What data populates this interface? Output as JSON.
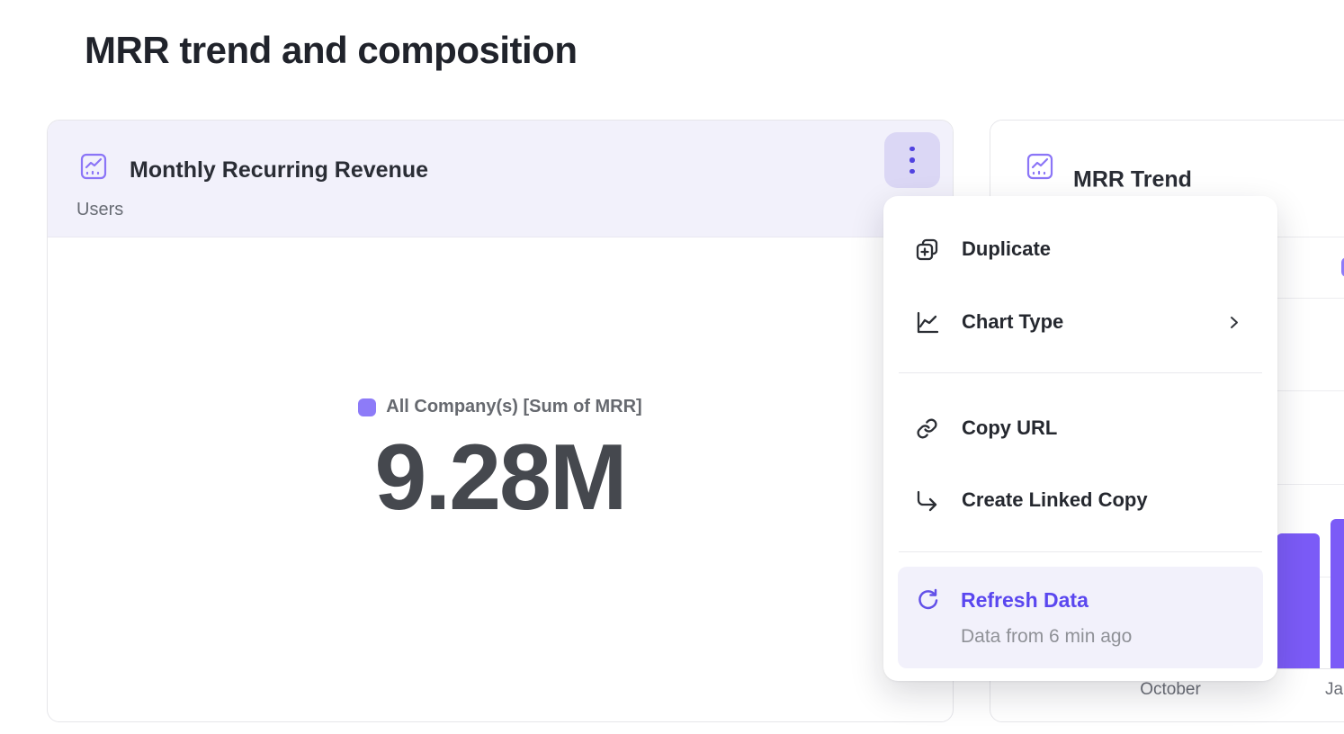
{
  "page": {
    "title": "MRR trend and composition"
  },
  "mrr_card": {
    "title": "Monthly Recurring Revenue",
    "subtitle": "Users",
    "legend_label": "All Company(s) [Sum of MRR]",
    "big_number": "9.28M"
  },
  "trend_card": {
    "title": "MRR Trend",
    "x_labels_visible": {
      "first": "October",
      "second": "January"
    }
  },
  "menu": {
    "items": [
      {
        "label": "Duplicate",
        "icon": "duplicate-icon"
      },
      {
        "label": "Chart Type",
        "icon": "line-chart-icon",
        "has_submenu": true
      },
      {
        "label": "Copy URL",
        "icon": "link-icon"
      },
      {
        "label": "Create Linked Copy",
        "icon": "linked-copy-icon"
      },
      {
        "label": "Refresh Data",
        "sublabel": "Data from 6 min ago",
        "icon": "refresh-icon",
        "highlighted": true
      }
    ]
  },
  "colors": {
    "accent_purple": "#7b5bf7",
    "legend_swatch": "#8d7bf8",
    "refresh_text": "#5a47ef",
    "kebab_dot": "#5143e0",
    "kebab_bg": "#dbd7f5",
    "header_bg": "#f2f1fb",
    "big_number_text": "#45484e",
    "muted_text": "#696d75"
  },
  "chart_data": [
    {
      "type": "number",
      "title": "Monthly Recurring Revenue",
      "subtitle": "Users",
      "legend": "All Company(s) [Sum of MRR]",
      "value": "9.28M",
      "accent_color": "#8d7bf8"
    },
    {
      "type": "bar",
      "title": "MRR Trend",
      "categories": [
        "October",
        "January"
      ],
      "values_gridline_units": [
        1.46,
        1.61
      ],
      "gridline_count": 4,
      "bar_color": "#7b5bf7",
      "grid": true,
      "y_axis_labels_visible": false,
      "occlusion": "menu overlay and right viewport edge hide part of chart"
    }
  ]
}
